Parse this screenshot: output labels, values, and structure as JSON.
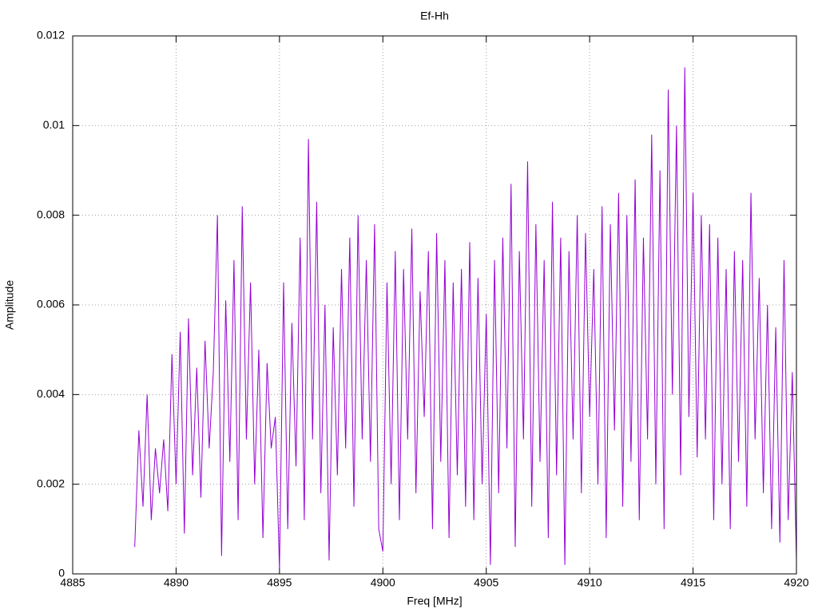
{
  "chart_data": {
    "type": "line",
    "title": "Ef-Hh",
    "x_label": "Freq [MHz]",
    "y_label": "Amplitude",
    "xlim": [
      4885,
      4920
    ],
    "xticks": [
      4885,
      4890,
      4895,
      4900,
      4905,
      4910,
      4915,
      4920
    ],
    "ylim": [
      0,
      0.012
    ],
    "yticks": [
      0,
      0.002,
      0.004,
      0.006,
      0.008,
      0.01,
      0.012
    ],
    "grid": true,
    "series": [
      {
        "color": "#9400d3",
        "x": [
          4888.0,
          4888.2,
          4888.4,
          4888.6,
          4888.8,
          4889.0,
          4889.2,
          4889.4,
          4889.6,
          4889.8,
          4890.0,
          4890.2,
          4890.4,
          4890.6,
          4890.8,
          4891.0,
          4891.2,
          4891.4,
          4891.6,
          4891.8,
          4892.0,
          4892.2,
          4892.4,
          4892.6,
          4892.8,
          4893.0,
          4893.2,
          4893.4,
          4893.6,
          4893.8,
          4894.0,
          4894.2,
          4894.4,
          4894.6,
          4894.8,
          4895.0,
          4895.2,
          4895.4,
          4895.6,
          4895.8,
          4896.0,
          4896.2,
          4896.4,
          4896.6,
          4896.8,
          4897.0,
          4897.2,
          4897.4,
          4897.6,
          4897.8,
          4898.0,
          4898.2,
          4898.4,
          4898.6,
          4898.8,
          4899.0,
          4899.2,
          4899.4,
          4899.6,
          4899.8,
          4900.0,
          4900.2,
          4900.4,
          4900.6,
          4900.8,
          4901.0,
          4901.2,
          4901.4,
          4901.6,
          4901.8,
          4902.0,
          4902.2,
          4902.4,
          4902.6,
          4902.8,
          4903.0,
          4903.2,
          4903.4,
          4903.6,
          4903.8,
          4904.0,
          4904.2,
          4904.4,
          4904.6,
          4904.8,
          4905.0,
          4905.2,
          4905.4,
          4905.6,
          4905.8,
          4906.0,
          4906.2,
          4906.4,
          4906.6,
          4906.8,
          4907.0,
          4907.2,
          4907.4,
          4907.6,
          4907.8,
          4908.0,
          4908.2,
          4908.4,
          4908.6,
          4908.8,
          4909.0,
          4909.2,
          4909.4,
          4909.6,
          4909.8,
          4910.0,
          4910.2,
          4910.4,
          4910.6,
          4910.8,
          4911.0,
          4911.2,
          4911.4,
          4911.6,
          4911.8,
          4912.0,
          4912.2,
          4912.4,
          4912.6,
          4912.8,
          4913.0,
          4913.2,
          4913.4,
          4913.6,
          4913.8,
          4914.0,
          4914.2,
          4914.4,
          4914.6,
          4914.8,
          4915.0,
          4915.2,
          4915.4,
          4915.6,
          4915.8,
          4916.0,
          4916.2,
          4916.4,
          4916.6,
          4916.8,
          4917.0,
          4917.2,
          4917.4,
          4917.6,
          4917.8,
          4918.0,
          4918.2,
          4918.4,
          4918.6,
          4918.8,
          4919.0,
          4919.2,
          4919.4,
          4919.6,
          4919.8,
          4920.0
        ],
        "values": [
          0.0006,
          0.0032,
          0.0015,
          0.004,
          0.0012,
          0.0028,
          0.0018,
          0.003,
          0.0014,
          0.0049,
          0.002,
          0.0054,
          0.0009,
          0.0057,
          0.0022,
          0.0046,
          0.0017,
          0.0052,
          0.0028,
          0.0045,
          0.008,
          0.0004,
          0.0061,
          0.0025,
          0.007,
          0.0012,
          0.0082,
          0.003,
          0.0065,
          0.002,
          0.005,
          0.0008,
          0.0047,
          0.0028,
          0.0035,
          0.0001,
          0.0065,
          0.001,
          0.0056,
          0.0024,
          0.0075,
          0.0012,
          0.0097,
          0.003,
          0.0083,
          0.0018,
          0.006,
          0.0003,
          0.0055,
          0.0022,
          0.0068,
          0.0028,
          0.0075,
          0.0015,
          0.008,
          0.003,
          0.007,
          0.0025,
          0.0078,
          0.001,
          0.0005,
          0.0065,
          0.002,
          0.0072,
          0.0012,
          0.0068,
          0.003,
          0.0077,
          0.0018,
          0.0063,
          0.0035,
          0.0072,
          0.001,
          0.0076,
          0.0025,
          0.007,
          0.0008,
          0.0065,
          0.0022,
          0.0068,
          0.0015,
          0.0074,
          0.0012,
          0.0066,
          0.002,
          0.0058,
          0.0002,
          0.007,
          0.0018,
          0.0075,
          0.0028,
          0.0087,
          0.0006,
          0.0072,
          0.003,
          0.0092,
          0.0015,
          0.0078,
          0.0025,
          0.007,
          0.0008,
          0.0083,
          0.0022,
          0.0075,
          0.0002,
          0.0072,
          0.003,
          0.008,
          0.0018,
          0.0076,
          0.0035,
          0.0068,
          0.002,
          0.0082,
          0.0008,
          0.0078,
          0.0032,
          0.0085,
          0.0015,
          0.008,
          0.0025,
          0.0088,
          0.0012,
          0.0075,
          0.003,
          0.0098,
          0.002,
          0.009,
          0.001,
          0.0108,
          0.004,
          0.01,
          0.0022,
          0.0113,
          0.0035,
          0.0085,
          0.0026,
          0.008,
          0.003,
          0.0078,
          0.0012,
          0.0075,
          0.002,
          0.0068,
          0.001,
          0.0072,
          0.0025,
          0.007,
          0.0015,
          0.0085,
          0.003,
          0.0066,
          0.0018,
          0.006,
          0.001,
          0.0055,
          0.0007,
          0.007,
          0.0012,
          0.0045,
          0.0003
        ]
      }
    ]
  }
}
